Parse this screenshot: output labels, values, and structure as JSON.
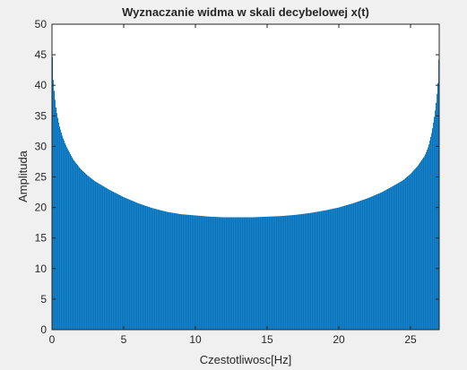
{
  "figure": {
    "background": "#f0f0f0",
    "axes_background": "#ffffff",
    "axis_color": "#262626",
    "bar_color": "#0072bd"
  },
  "chart_data": {
    "type": "bar",
    "title": "Wyznaczanie widma w skali decybelowej x(t)",
    "xlabel": "Czestotliwosc[Hz]",
    "ylabel": "Amplituda",
    "xlim": [
      0,
      27
    ],
    "ylim": [
      0,
      50
    ],
    "xticks": [
      0,
      5,
      10,
      15,
      20,
      25
    ],
    "yticks": [
      0,
      5,
      10,
      15,
      20,
      25,
      30,
      35,
      40,
      45,
      50
    ],
    "grid": false,
    "legend": "none",
    "series": [
      {
        "x": [
          0,
          0.1,
          0.2,
          0.3,
          0.5,
          0.75,
          1,
          1.5,
          2,
          2.5,
          3,
          4,
          5,
          6,
          7,
          8,
          9,
          10,
          11,
          12,
          13,
          13.5,
          14,
          15,
          16,
          17,
          18,
          19,
          20,
          21,
          22,
          23,
          24,
          24.5,
          25,
          25.5,
          26,
          26.25,
          26.5,
          26.7,
          26.8,
          26.9,
          27
        ],
        "values": [
          46.5,
          40.5,
          38,
          36,
          33.5,
          31.5,
          30,
          27.8,
          26.3,
          25.2,
          24.3,
          22.9,
          21.7,
          20.7,
          19.9,
          19.3,
          18.9,
          18.7,
          18.5,
          18.4,
          18.4,
          18.4,
          18.4,
          18.5,
          18.6,
          18.8,
          19.1,
          19.5,
          20,
          20.7,
          21.5,
          22.5,
          23.8,
          24.5,
          25.5,
          26.8,
          28.5,
          30,
          32.5,
          35.5,
          37.5,
          40,
          46
        ]
      }
    ]
  }
}
